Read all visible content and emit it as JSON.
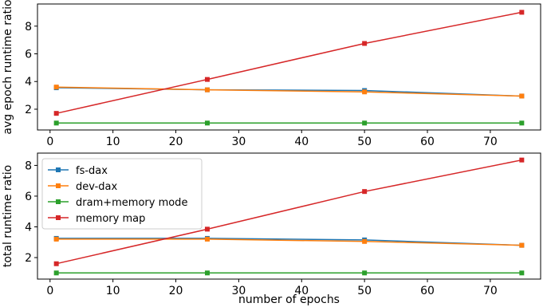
{
  "chart_data": [
    {
      "type": "line",
      "title": "",
      "xlabel": "",
      "ylabel": "avg epoch runtime ratio",
      "x": [
        1,
        25,
        50,
        75
      ],
      "xlim": [
        -2,
        78
      ],
      "ylim": [
        0.5,
        9.6
      ],
      "xticks": [
        0,
        10,
        20,
        30,
        40,
        50,
        60,
        70
      ],
      "yticks": [
        2,
        4,
        6,
        8
      ],
      "grid": false,
      "series": [
        {
          "name": "fs-dax",
          "color": "#1f77b4",
          "values": [
            3.55,
            3.4,
            3.35,
            2.95
          ]
        },
        {
          "name": "dev-dax",
          "color": "#ff7f0e",
          "values": [
            3.6,
            3.4,
            3.25,
            2.95
          ]
        },
        {
          "name": "dram+memory mode",
          "color": "#2ca02c",
          "values": [
            1.0,
            1.0,
            1.0,
            1.0
          ]
        },
        {
          "name": "memory map",
          "color": "#d62728",
          "values": [
            1.7,
            4.15,
            6.75,
            9.0
          ]
        }
      ]
    },
    {
      "type": "line",
      "title": "",
      "xlabel": "number of epochs",
      "ylabel": "total runtime ratio",
      "x": [
        1,
        25,
        50,
        75
      ],
      "xlim": [
        -2,
        78
      ],
      "ylim": [
        0.6,
        8.8
      ],
      "xticks": [
        0,
        10,
        20,
        30,
        40,
        50,
        60,
        70
      ],
      "yticks": [
        2,
        4,
        6,
        8
      ],
      "grid": false,
      "legend": "top-left",
      "series": [
        {
          "name": "fs-dax",
          "color": "#1f77b4",
          "values": [
            3.25,
            3.25,
            3.15,
            2.8
          ]
        },
        {
          "name": "dev-dax",
          "color": "#ff7f0e",
          "values": [
            3.2,
            3.2,
            3.05,
            2.8
          ]
        },
        {
          "name": "dram+memory mode",
          "color": "#2ca02c",
          "values": [
            1.0,
            1.0,
            1.0,
            1.0
          ]
        },
        {
          "name": "memory map",
          "color": "#d62728",
          "values": [
            1.6,
            3.85,
            6.3,
            8.35
          ]
        }
      ]
    }
  ]
}
